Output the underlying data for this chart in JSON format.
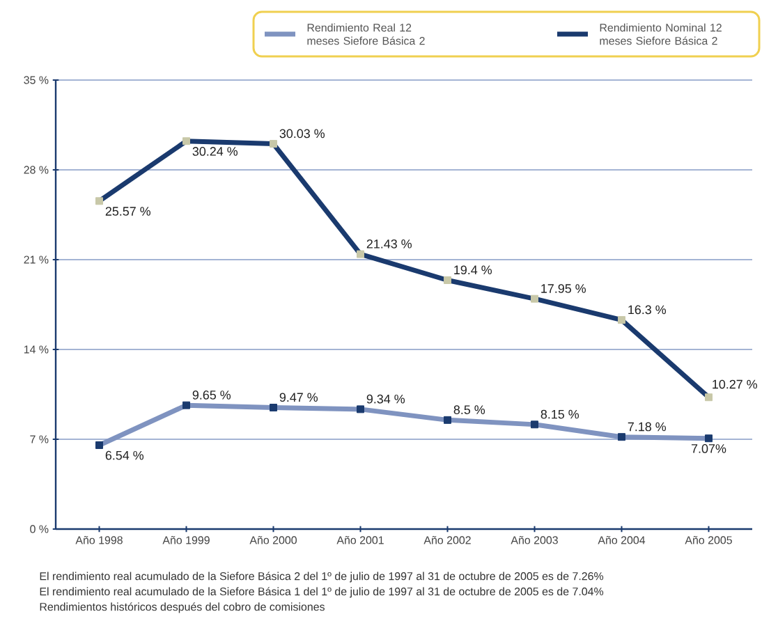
{
  "chart_data": {
    "type": "line",
    "categories": [
      "Año 1998",
      "Año 1999",
      "Año 2000",
      "Año 2001",
      "Año 2002",
      "Año 2003",
      "Año 2004",
      "Año 2005"
    ],
    "series": [
      {
        "name": "Rendimiento Real 12 meses Siefore Básica 2",
        "color": "#7f93c0",
        "values": [
          6.54,
          9.65,
          9.47,
          9.34,
          8.5,
          8.15,
          7.18,
          7.07
        ],
        "value_labels": [
          "6.54 %",
          "9.65 %",
          "9.47 %",
          "9.34 %",
          "8.5 %",
          "8.15 %",
          "7.18 %",
          "7.07%"
        ]
      },
      {
        "name": "Rendimiento Nominal 12 meses Siefore Básica 2",
        "color": "#1a3a6e",
        "values": [
          25.57,
          30.24,
          30.03,
          21.43,
          19.4,
          17.95,
          16.3,
          10.27
        ],
        "value_labels": [
          "25.57 %",
          "30.24 %",
          "30.03 %",
          "21.43 %",
          "19.4 %",
          "17.95 %",
          "16.3 %",
          "10.27 %"
        ]
      }
    ],
    "ylim": [
      0,
      35
    ],
    "yticks": [
      {
        "value": 0,
        "label": "0 %"
      },
      {
        "value": 7,
        "label": "7 %"
      },
      {
        "value": 14,
        "label": "14 %"
      },
      {
        "value": 21,
        "label": "21 %"
      },
      {
        "value": 28,
        "label": "28 %"
      },
      {
        "value": 35,
        "label": "35 %"
      }
    ],
    "grid": "y",
    "legend": "top",
    "marker": "square",
    "line_style": "solid",
    "annotations": [
      "El rendimiento real acumulado de la Siefore Básica 2 del 1º de julio de 1997 al 31 de octubre de 2005 es de 7.26%",
      "El rendimiento real acumulado de la Siefore Básica 1 del 1º de julio de 1997 al 31 de octubre de 2005 es de 7.04%",
      "Rendimientos históricos después del cobro de comisiones"
    ]
  }
}
